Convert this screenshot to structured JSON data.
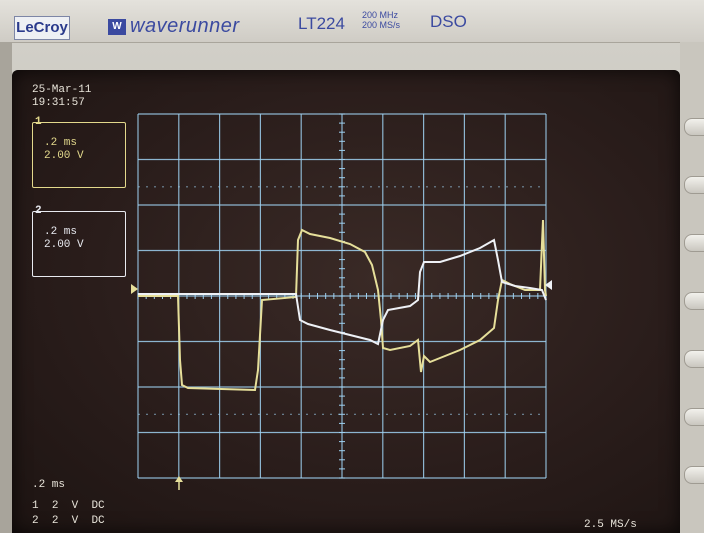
{
  "bezel": {
    "brand": "LeCroy",
    "badge": "W",
    "series": "waverunner",
    "model": "LT224",
    "specs_line1": "200 MHz",
    "specs_line2": "200 MS/s",
    "type": "DSO"
  },
  "screen": {
    "date": "25-Mar-11",
    "time": "19:31:57",
    "channels": [
      {
        "number": "1",
        "time_div": ".2 ms",
        "volts_div": "2.00 V",
        "color": "#e3d98c"
      },
      {
        "number": "2",
        "time_div": ".2 ms",
        "volts_div": "2.00 V",
        "color": "#e8eaf0"
      }
    ],
    "timebase": ".2 ms",
    "coupling_rows": [
      {
        "ch": "1",
        "volts": "2",
        "unit": "V",
        "coupling": "DC"
      },
      {
        "ch": "2",
        "volts": "2",
        "unit": "V",
        "coupling": "DC"
      }
    ],
    "sample_rate": "2.5 MS/s",
    "grid_color": "#9ed0f0",
    "trace1_color": "#e6df9a",
    "trace2_color": "#eef1f6"
  }
}
